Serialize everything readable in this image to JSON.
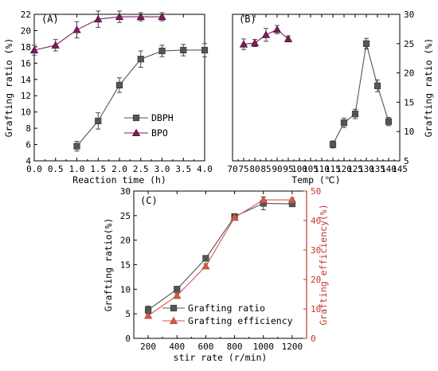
{
  "chart_data": [
    {
      "panel": "(A)",
      "type": "line",
      "xlabel": "Reaction time (h)",
      "ylabel": "Grafting ratio (%)",
      "xlim": [
        0.0,
        4.0
      ],
      "ylim": [
        4,
        22
      ],
      "xticks": [
        "0.0",
        "0.5",
        "1.0",
        "1.5",
        "2.0",
        "2.5",
        "3.0",
        "3.5",
        "4.0"
      ],
      "yticks": [
        "4",
        "6",
        "8",
        "10",
        "12",
        "14",
        "16",
        "18",
        "20",
        "22"
      ],
      "legend": "center-right",
      "series": [
        {
          "name": "DBPH",
          "marker": "square",
          "color": "#555555",
          "points": [
            [
              1.0,
              5.8
            ],
            [
              1.5,
              8.9
            ],
            [
              2.0,
              13.3
            ],
            [
              2.5,
              16.5
            ],
            [
              3.0,
              17.5
            ],
            [
              3.5,
              17.6
            ],
            [
              4.0,
              17.6
            ]
          ],
          "err": [
            0.6,
            1.0,
            0.9,
            1.0,
            0.7,
            0.7,
            0.8
          ]
        },
        {
          "name": "BPO",
          "marker": "triangle",
          "color": "#7a1f5a",
          "points": [
            [
              0.0,
              17.6
            ],
            [
              0.5,
              18.2
            ],
            [
              1.0,
              20.1
            ],
            [
              1.5,
              21.4
            ],
            [
              2.0,
              21.7
            ],
            [
              2.5,
              21.7
            ],
            [
              3.0,
              21.7
            ]
          ],
          "err": [
            0.6,
            0.7,
            1.0,
            1.0,
            0.7,
            0.5,
            0.5
          ]
        }
      ]
    },
    {
      "panel": "(B)",
      "type": "line",
      "xlabel": "Temp (℃)",
      "ylabel": "Grafting ratio (%)",
      "xlim": [
        70,
        145
      ],
      "ylim": [
        5,
        30
      ],
      "xticks": [
        "70",
        "75",
        "80",
        "85",
        "90",
        "95",
        "100",
        "105",
        "110",
        "115",
        "120",
        "125",
        "130",
        "135",
        "140",
        "145"
      ],
      "yticks": [
        "5",
        "10",
        "15",
        "20",
        "25",
        "30"
      ],
      "series": [
        {
          "name": "",
          "marker": "triangle",
          "color": "#7a1f5a",
          "points": [
            [
              75,
              24.9
            ],
            [
              80,
              25.1
            ],
            [
              85,
              26.5
            ],
            [
              90,
              27.4
            ],
            [
              95,
              25.8
            ]
          ],
          "err": [
            0.9,
            0.6,
            1.1,
            0.7,
            0.5
          ]
        },
        {
          "name": "",
          "marker": "square",
          "color": "#555555",
          "points": [
            [
              115,
              7.8
            ],
            [
              120,
              11.5
            ],
            [
              125,
              13.0
            ],
            [
              130,
              25.0
            ],
            [
              135,
              17.8
            ],
            [
              140,
              11.7
            ]
          ],
          "err": [
            0.6,
            0.8,
            0.8,
            0.9,
            1.0,
            0.7
          ]
        }
      ]
    },
    {
      "panel": "(C)",
      "type": "line",
      "xlabel": "stir rate (r/min)",
      "ylabel": "Grafting ratio(%)",
      "ylabel_right": "Grafting efficiency(%)",
      "xlim": [
        100,
        1300
      ],
      "ylim": [
        0,
        30
      ],
      "ylim_right": [
        0,
        50
      ],
      "xticks": [
        "200",
        "400",
        "600",
        "800",
        "1000",
        "1200"
      ],
      "yticks": [
        "0",
        "5",
        "10",
        "15",
        "20",
        "25",
        "30"
      ],
      "yticks_right": [
        "0",
        "10",
        "20",
        "30",
        "40",
        "50"
      ],
      "legend": "bottom-center",
      "series": [
        {
          "name": "Grafting ratio",
          "axis": "left",
          "marker": "square",
          "color": "#555555",
          "points": [
            [
              200,
              5.8
            ],
            [
              400,
              10.0
            ],
            [
              600,
              16.3
            ],
            [
              800,
              24.8
            ],
            [
              1000,
              27.5
            ],
            [
              1200,
              27.4
            ]
          ],
          "err": [
            0.8,
            0.6,
            0.5,
            0.6,
            1.3,
            0.5
          ]
        },
        {
          "name": "Grafting efficiency",
          "axis": "right",
          "marker": "triangle",
          "color": "#d9534f",
          "points": [
            [
              200,
              7.7
            ],
            [
              400,
              14.5
            ],
            [
              600,
              24.5
            ],
            [
              800,
              41.0
            ],
            [
              1000,
              47.0
            ],
            [
              1200,
              47.0
            ]
          ],
          "err": [
            0.8,
            0.8,
            0.8,
            0.8,
            1.0,
            0.6
          ]
        }
      ]
    }
  ]
}
